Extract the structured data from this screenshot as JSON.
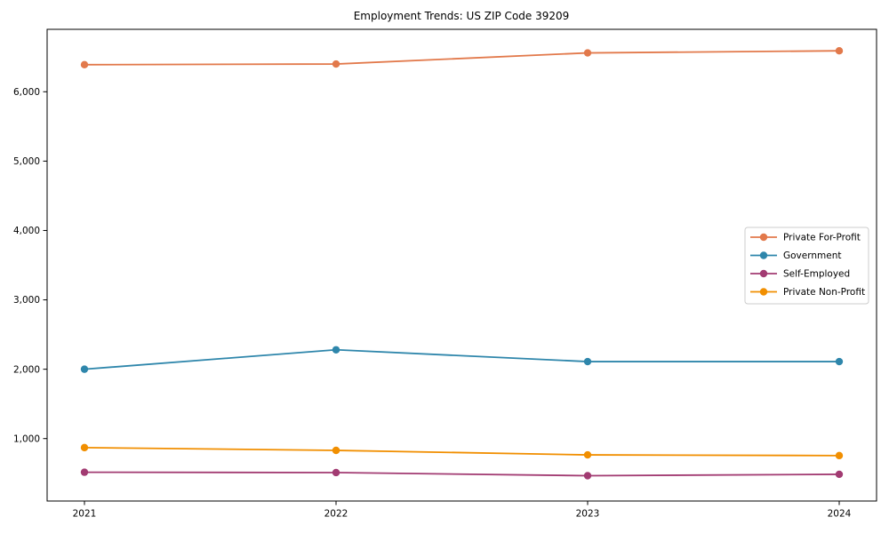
{
  "chart_data": {
    "type": "line",
    "title": "Employment Trends: US ZIP Code 39209",
    "xlabel": "",
    "ylabel": "",
    "categories": [
      "2021",
      "2022",
      "2023",
      "2024"
    ],
    "series": [
      {
        "name": "Private For-Profit",
        "color": "#E2794B",
        "values": [
          6390,
          6400,
          6560,
          6590
        ]
      },
      {
        "name": "Government",
        "color": "#2E86AB",
        "values": [
          2000,
          2280,
          2110,
          2110
        ]
      },
      {
        "name": "Self-Employed",
        "color": "#A23B72",
        "values": [
          515,
          510,
          465,
          485
        ]
      },
      {
        "name": "Private Non-Profit",
        "color": "#F18F01",
        "values": [
          870,
          830,
          765,
          755
        ]
      }
    ],
    "ylim": [
      100,
      6900
    ],
    "yticks": [
      1000,
      2000,
      3000,
      4000,
      5000,
      6000
    ],
    "ytick_labels": [
      "1,000",
      "2,000",
      "3,000",
      "4,000",
      "5,000",
      "6,000"
    ],
    "grid": "off",
    "legend_position": "center-right",
    "marker": "circle",
    "axis_color": "#000000",
    "legend_border_color": "#cccccc",
    "legend_background": "#ffffff"
  }
}
